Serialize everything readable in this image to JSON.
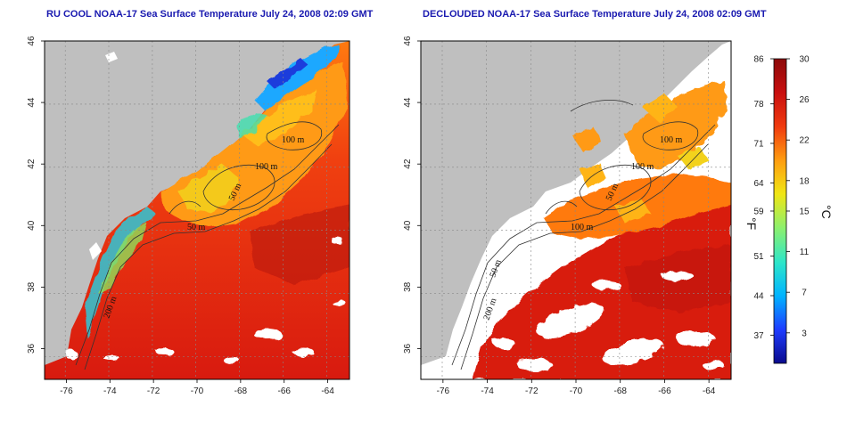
{
  "titles": {
    "left": "RU COOL NOAA-17 Sea Surface Temperature July 24, 2008 02:09 GMT",
    "right": "DECLOUDED NOAA-17 Sea Surface Temperature July 24, 2008 02:09 GMT"
  },
  "chart_data": [
    {
      "type": "heatmap",
      "title": "RU COOL NOAA-17 Sea Surface Temperature July 24, 2008 02:09 GMT",
      "xlim": [
        -77,
        -63
      ],
      "ylim": [
        35,
        46
      ],
      "x_ticks": [
        -76,
        -74,
        -72,
        -70,
        -68,
        -66,
        -64
      ],
      "y_ticks": [
        36,
        38,
        40,
        42,
        44,
        46
      ],
      "contour_labels": [
        "100 m",
        "100 m",
        "50 m",
        "50 m",
        "200 m"
      ],
      "grid": true
    },
    {
      "type": "heatmap",
      "title": "DECLOUDED NOAA-17 Sea Surface Temperature July 24, 2008 02:09 GMT",
      "xlim": [
        -77,
        -63
      ],
      "ylim": [
        35,
        46
      ],
      "x_ticks": [
        -76,
        -74,
        -72,
        -70,
        -68,
        -66,
        -64
      ],
      "y_ticks": [
        36,
        38,
        40,
        42,
        44,
        46
      ],
      "contour_labels": [
        "100 m",
        "100 m",
        "50 m",
        "100 m",
        "50 m",
        "200 m"
      ],
      "grid": true
    }
  ],
  "colorbar": {
    "range_c": [
      0,
      30
    ],
    "range_f": [
      32,
      86
    ],
    "celsius_ticks": [
      3,
      7,
      11,
      15,
      18,
      22,
      26,
      30
    ],
    "fahrenheit_ticks": [
      37,
      44,
      51,
      59,
      64,
      71,
      78,
      86
    ],
    "left_unit": "°F",
    "right_unit": "°C",
    "colors": [
      "#0a0a8c",
      "#1e3cff",
      "#00b4ff",
      "#2ee6c8",
      "#8cf06e",
      "#f0e614",
      "#ff9d10",
      "#f03a0f",
      "#c80f0f",
      "#8c0a0a"
    ]
  }
}
